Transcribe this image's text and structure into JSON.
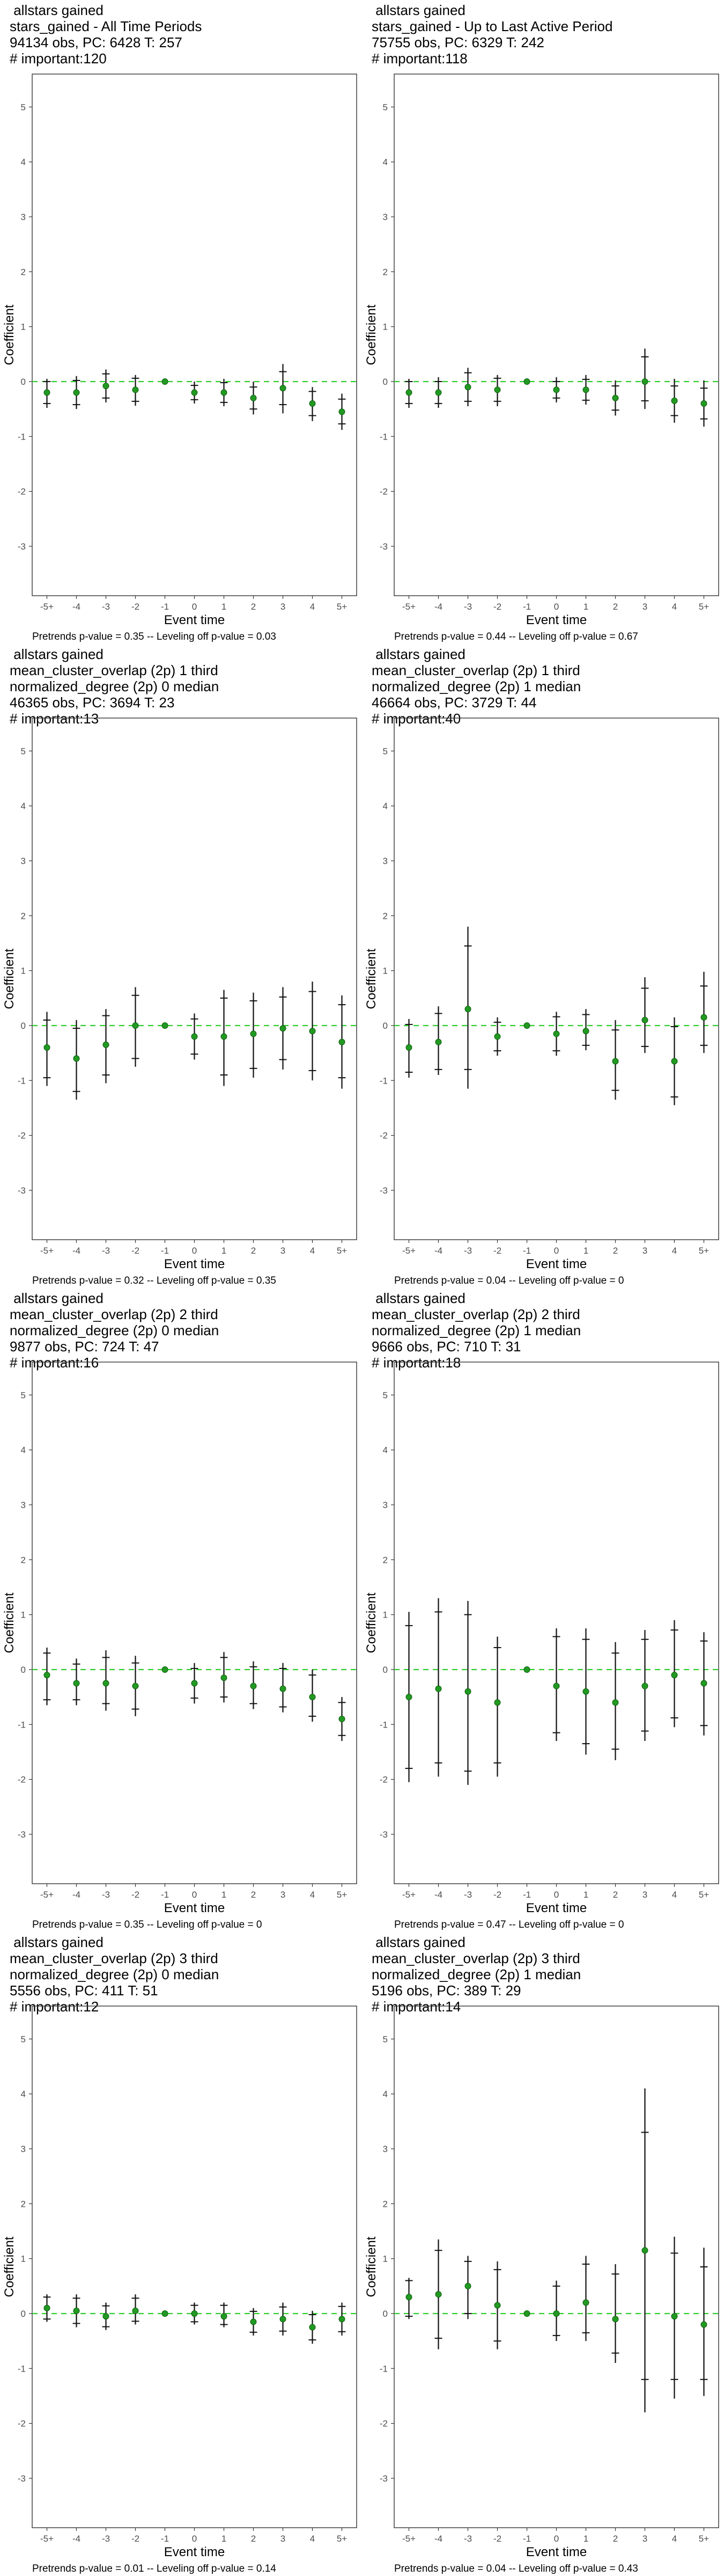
{
  "chart_data": [
    {
      "type": "scatter",
      "title_lines": [
        " allstars gained",
        "stars_gained - All Time Periods",
        "94134 obs, PC: 6428 T: 257",
        "# important:120"
      ],
      "xlabel": "Event time",
      "ylabel": "Coefficient",
      "categories": [
        "-5+",
        "-4",
        "-3",
        "-2",
        "-1",
        "0",
        "1",
        "2",
        "3",
        "4",
        "5+"
      ],
      "ylim": [
        -3.9,
        5.6
      ],
      "yticks": [
        -3,
        -2,
        -1,
        0,
        1,
        2,
        3,
        4,
        5
      ],
      "reference_line": {
        "y": 0,
        "style": "dashed",
        "color": "#33cc33"
      },
      "estimates": [
        -0.2,
        -0.2,
        -0.08,
        -0.15,
        0,
        -0.2,
        -0.2,
        -0.3,
        -0.12,
        -0.4,
        -0.55
      ],
      "ci95_low": [
        -0.48,
        -0.5,
        -0.38,
        -0.44,
        0,
        -0.4,
        -0.45,
        -0.6,
        -0.58,
        -0.72,
        -0.88
      ],
      "ci95_high": [
        0.05,
        0.1,
        0.22,
        0.12,
        0,
        0.0,
        0.05,
        0.0,
        0.32,
        -0.1,
        -0.22
      ],
      "ci90_low": [
        -0.4,
        -0.42,
        -0.3,
        -0.36,
        0,
        -0.33,
        -0.38,
        -0.5,
        -0.42,
        -0.62,
        -0.77
      ],
      "ci90_high": [
        0.0,
        0.02,
        0.14,
        0.06,
        0,
        -0.07,
        -0.02,
        -0.1,
        0.18,
        -0.18,
        -0.32
      ],
      "footer": "Pretrends p-value = 0.35 -- Leveling off p-value = 0.03"
    },
    {
      "type": "scatter",
      "title_lines": [
        " allstars gained",
        "stars_gained - Up to Last Active Period",
        "75755 obs, PC: 6329 T: 242",
        "# important:118"
      ],
      "xlabel": "Event time",
      "ylabel": "Coefficient",
      "categories": [
        "-5+",
        "-4",
        "-3",
        "-2",
        "-1",
        "0",
        "1",
        "2",
        "3",
        "4",
        "5+"
      ],
      "ylim": [
        -3.9,
        5.6
      ],
      "yticks": [
        -3,
        -2,
        -1,
        0,
        1,
        2,
        3,
        4,
        5
      ],
      "reference_line": {
        "y": 0,
        "style": "dashed",
        "color": "#33cc33"
      },
      "estimates": [
        -0.2,
        -0.2,
        -0.1,
        -0.15,
        0,
        -0.15,
        -0.15,
        -0.3,
        0.0,
        -0.35,
        -0.4
      ],
      "ci95_low": [
        -0.48,
        -0.48,
        -0.45,
        -0.45,
        0,
        -0.38,
        -0.42,
        -0.62,
        -0.5,
        -0.75,
        -0.82
      ],
      "ci95_high": [
        0.05,
        0.08,
        0.25,
        0.12,
        0,
        0.08,
        0.12,
        0.02,
        0.6,
        0.05,
        0.02
      ],
      "ci90_low": [
        -0.4,
        -0.4,
        -0.36,
        -0.36,
        0,
        -0.3,
        -0.34,
        -0.52,
        -0.35,
        -0.62,
        -0.68
      ],
      "ci90_high": [
        0.0,
        0.0,
        0.16,
        0.06,
        0,
        0.0,
        0.04,
        -0.08,
        0.45,
        -0.08,
        -0.12
      ],
      "footer": "Pretrends p-value = 0.44 -- Leveling off p-value = 0.67"
    },
    {
      "type": "scatter",
      "title_lines": [
        " allstars gained",
        "mean_cluster_overlap (2p) 1 third",
        "normalized_degree (2p) 0 median",
        "46365 obs, PC: 3694 T: 23",
        "# important:13"
      ],
      "xlabel": "Event time",
      "ylabel": "Coefficient",
      "categories": [
        "-5+",
        "-4",
        "-3",
        "-2",
        "-1",
        "0",
        "1",
        "2",
        "3",
        "4",
        "5+"
      ],
      "ylim": [
        -3.9,
        5.6
      ],
      "yticks": [
        -3,
        -2,
        -1,
        0,
        1,
        2,
        3,
        4,
        5
      ],
      "reference_line": {
        "y": 0,
        "style": "dashed",
        "color": "#33cc33"
      },
      "estimates": [
        -0.4,
        -0.6,
        -0.35,
        0.0,
        0,
        -0.2,
        -0.2,
        -0.15,
        -0.05,
        -0.1,
        -0.3
      ],
      "ci95_low": [
        -1.1,
        -1.35,
        -1.05,
        -0.75,
        0,
        -0.62,
        -1.1,
        -0.95,
        -0.8,
        -1.0,
        -1.15
      ],
      "ci95_high": [
        0.25,
        0.1,
        0.3,
        0.7,
        0,
        0.22,
        0.65,
        0.6,
        0.7,
        0.8,
        0.55
      ],
      "ci90_low": [
        -0.95,
        -1.2,
        -0.9,
        -0.6,
        0,
        -0.52,
        -0.9,
        -0.78,
        -0.62,
        -0.82,
        -0.95
      ],
      "ci90_high": [
        0.1,
        -0.05,
        0.18,
        0.55,
        0,
        0.12,
        0.5,
        0.45,
        0.52,
        0.62,
        0.38
      ],
      "footer": "Pretrends p-value = 0.32 -- Leveling off p-value = 0.35"
    },
    {
      "type": "scatter",
      "title_lines": [
        " allstars gained",
        "mean_cluster_overlap (2p) 1 third",
        "normalized_degree (2p) 1 median",
        "46664 obs, PC: 3729 T: 44",
        "# important:40"
      ],
      "xlabel": "Event time",
      "ylabel": "Coefficient",
      "categories": [
        "-5+",
        "-4",
        "-3",
        "-2",
        "-1",
        "0",
        "1",
        "2",
        "3",
        "4",
        "5+"
      ],
      "ylim": [
        -3.9,
        5.6
      ],
      "yticks": [
        -3,
        -2,
        -1,
        0,
        1,
        2,
        3,
        4,
        5
      ],
      "reference_line": {
        "y": 0,
        "style": "dashed",
        "color": "#33cc33"
      },
      "estimates": [
        -0.4,
        -0.3,
        0.3,
        -0.2,
        0,
        -0.15,
        -0.1,
        -0.65,
        0.1,
        -0.65,
        0.15
      ],
      "ci95_low": [
        -0.95,
        -0.9,
        -1.15,
        -0.55,
        0,
        -0.55,
        -0.45,
        -1.35,
        -0.5,
        -1.45,
        -0.5
      ],
      "ci95_high": [
        0.12,
        0.35,
        1.8,
        0.15,
        0,
        0.25,
        0.3,
        0.1,
        0.88,
        0.15,
        0.98
      ],
      "ci90_low": [
        -0.85,
        -0.8,
        -0.8,
        -0.46,
        0,
        -0.46,
        -0.36,
        -1.18,
        -0.38,
        -1.3,
        -0.36
      ],
      "ci90_high": [
        0.02,
        0.22,
        1.45,
        0.06,
        0,
        0.16,
        0.2,
        -0.08,
        0.68,
        -0.02,
        0.72
      ],
      "footer": "Pretrends p-value = 0.04 -- Leveling off p-value = 0"
    },
    {
      "type": "scatter",
      "title_lines": [
        " allstars gained",
        "mean_cluster_overlap (2p) 2 third",
        "normalized_degree (2p) 0 median",
        "9877 obs, PC: 724 T: 47",
        "# important:16"
      ],
      "xlabel": "Event time",
      "ylabel": "Coefficient",
      "categories": [
        "-5+",
        "-4",
        "-3",
        "-2",
        "-1",
        "0",
        "1",
        "2",
        "3",
        "4",
        "5+"
      ],
      "ylim": [
        -3.9,
        5.6
      ],
      "yticks": [
        -3,
        -2,
        -1,
        0,
        1,
        2,
        3,
        4,
        5
      ],
      "reference_line": {
        "y": 0,
        "style": "dashed",
        "color": "#33cc33"
      },
      "estimates": [
        -0.1,
        -0.25,
        -0.25,
        -0.3,
        0,
        -0.25,
        -0.15,
        -0.3,
        -0.35,
        -0.5,
        -0.9
      ],
      "ci95_low": [
        -0.65,
        -0.65,
        -0.75,
        -0.85,
        0,
        -0.62,
        -0.6,
        -0.72,
        -0.78,
        -0.95,
        -1.3
      ],
      "ci95_high": [
        0.4,
        0.2,
        0.35,
        0.25,
        0,
        0.12,
        0.32,
        0.15,
        0.12,
        0.0,
        -0.5
      ],
      "ci90_low": [
        -0.55,
        -0.55,
        -0.62,
        -0.72,
        0,
        -0.52,
        -0.5,
        -0.62,
        -0.68,
        -0.85,
        -1.2
      ],
      "ci90_high": [
        0.3,
        0.1,
        0.22,
        0.12,
        0,
        0.02,
        0.22,
        0.05,
        0.02,
        -0.1,
        -0.6
      ],
      "footer": "Pretrends p-value = 0.35 -- Leveling off p-value = 0"
    },
    {
      "type": "scatter",
      "title_lines": [
        " allstars gained",
        "mean_cluster_overlap (2p) 2 third",
        "normalized_degree (2p) 1 median",
        "9666 obs, PC: 710 T: 31",
        "# important:18"
      ],
      "xlabel": "Event time",
      "ylabel": "Coefficient",
      "categories": [
        "-5+",
        "-4",
        "-3",
        "-2",
        "-1",
        "0",
        "1",
        "2",
        "3",
        "4",
        "5+"
      ],
      "ylim": [
        -3.9,
        5.6
      ],
      "yticks": [
        -3,
        -2,
        -1,
        0,
        1,
        2,
        3,
        4,
        5
      ],
      "reference_line": {
        "y": 0,
        "style": "dashed",
        "color": "#33cc33"
      },
      "estimates": [
        -0.5,
        -0.35,
        -0.4,
        -0.6,
        0,
        -0.3,
        -0.4,
        -0.6,
        -0.3,
        -0.1,
        -0.25
      ],
      "ci95_low": [
        -2.05,
        -1.95,
        -2.1,
        -1.95,
        0,
        -1.3,
        -1.55,
        -1.65,
        -1.3,
        -1.05,
        -1.2
      ],
      "ci95_high": [
        1.05,
        1.3,
        1.25,
        0.6,
        0,
        0.75,
        0.75,
        0.5,
        0.72,
        0.9,
        0.68
      ],
      "ci90_low": [
        -1.8,
        -1.7,
        -1.85,
        -1.7,
        0,
        -1.15,
        -1.35,
        -1.45,
        -1.12,
        -0.88,
        -1.02
      ],
      "ci90_high": [
        0.8,
        1.05,
        1.0,
        0.4,
        0,
        0.6,
        0.55,
        0.3,
        0.55,
        0.72,
        0.52
      ],
      "footer": "Pretrends p-value = 0.47 -- Leveling off p-value = 0"
    },
    {
      "type": "scatter",
      "title_lines": [
        " allstars gained",
        "mean_cluster_overlap (2p) 3 third",
        "normalized_degree (2p) 0 median",
        "5556 obs, PC: 411 T: 51",
        "# important:12"
      ],
      "xlabel": "Event time",
      "ylabel": "Coefficient",
      "categories": [
        "-5+",
        "-4",
        "-3",
        "-2",
        "-1",
        "0",
        "1",
        "2",
        "3",
        "4",
        "5+"
      ],
      "ylim": [
        -3.9,
        5.6
      ],
      "yticks": [
        -3,
        -2,
        -1,
        0,
        1,
        2,
        3,
        4,
        5
      ],
      "reference_line": {
        "y": 0,
        "style": "dashed",
        "color": "#33cc33"
      },
      "estimates": [
        0.1,
        0.05,
        -0.05,
        0.05,
        0,
        0.0,
        -0.05,
        -0.15,
        -0.1,
        -0.25,
        -0.1
      ],
      "ci95_low": [
        -0.15,
        -0.25,
        -0.3,
        -0.2,
        0,
        -0.2,
        -0.25,
        -0.4,
        -0.4,
        -0.55,
        -0.4
      ],
      "ci95_high": [
        0.35,
        0.35,
        0.2,
        0.35,
        0,
        0.2,
        0.2,
        0.1,
        0.2,
        0.05,
        0.2
      ],
      "ci90_low": [
        -0.1,
        -0.18,
        -0.24,
        -0.14,
        0,
        -0.15,
        -0.2,
        -0.34,
        -0.32,
        -0.48,
        -0.33
      ],
      "ci90_high": [
        0.3,
        0.28,
        0.14,
        0.28,
        0,
        0.15,
        0.15,
        0.04,
        0.12,
        -0.02,
        0.13
      ],
      "footer": "Pretrends p-value = 0.01 -- Leveling off p-value = 0.14"
    },
    {
      "type": "scatter",
      "title_lines": [
        " allstars gained",
        "mean_cluster_overlap (2p) 3 third",
        "normalized_degree (2p) 1 median",
        "5196 obs, PC: 389 T: 29",
        "# important:14"
      ],
      "xlabel": "Event time",
      "ylabel": "Coefficient",
      "categories": [
        "-5+",
        "-4",
        "-3",
        "-2",
        "-1",
        "0",
        "1",
        "2",
        "3",
        "4",
        "5+"
      ],
      "ylim": [
        -3.9,
        5.6
      ],
      "yticks": [
        -3,
        -2,
        -1,
        0,
        1,
        2,
        3,
        4,
        5
      ],
      "reference_line": {
        "y": 0,
        "style": "dashed",
        "color": "#33cc33"
      },
      "estimates": [
        0.3,
        0.35,
        0.5,
        0.15,
        0,
        0.0,
        0.2,
        -0.1,
        1.15,
        -0.05,
        -0.2
      ],
      "ci95_low": [
        -0.1,
        -0.65,
        -0.1,
        -0.65,
        0,
        -0.5,
        -0.5,
        -0.9,
        -1.8,
        -1.55,
        -1.5
      ],
      "ci95_high": [
        0.65,
        1.35,
        1.05,
        0.95,
        0,
        0.6,
        1.05,
        0.9,
        4.1,
        1.4,
        1.2
      ],
      "ci90_low": [
        -0.05,
        -0.45,
        0.0,
        -0.5,
        0,
        -0.4,
        -0.35,
        -0.72,
        -1.2,
        -1.2,
        -1.2
      ],
      "ci90_high": [
        0.6,
        1.15,
        0.95,
        0.8,
        0,
        0.5,
        0.9,
        0.72,
        3.3,
        1.1,
        0.85
      ],
      "footer": "Pretrends p-value = 0.04 -- Leveling off p-value = 0.43"
    }
  ]
}
